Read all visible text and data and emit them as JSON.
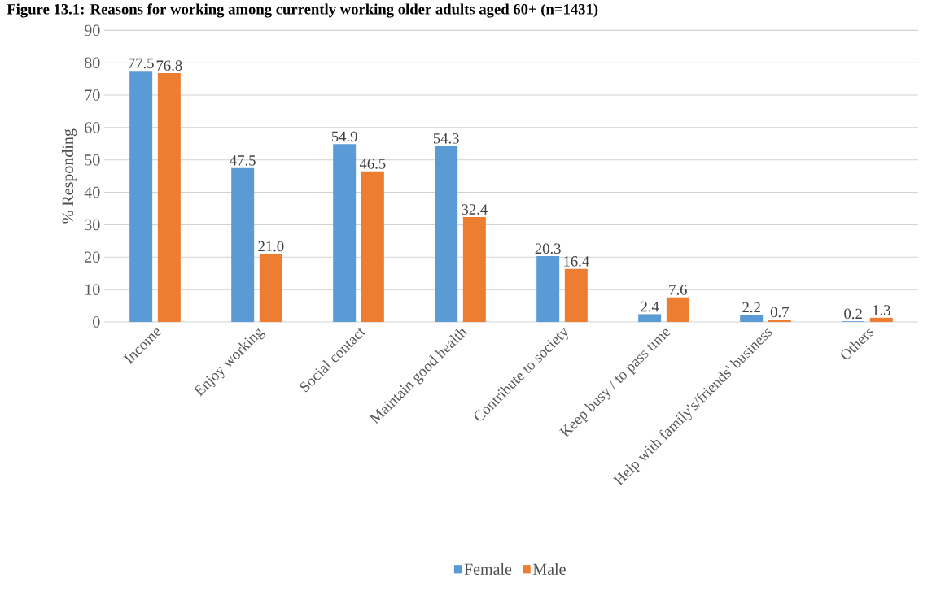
{
  "chart_data": {
    "type": "bar",
    "title": "Figure 13.1: Reasons for working among currently working older adults aged 60+ (n=1431)",
    "ylabel": "% Responding",
    "categories": [
      "Income",
      "Enjoy working",
      "Social contact",
      "Maintain good health",
      "Contribute to society",
      "Keep busy / to pass time",
      "Help with family's/friends' business",
      "Others"
    ],
    "series": [
      {
        "name": "Female",
        "color": "#5b9bd5",
        "values": [
          77.5,
          47.5,
          54.9,
          54.3,
          20.3,
          2.4,
          2.2,
          0.2
        ],
        "value_labels": [
          "77.5",
          "47.5",
          "54.9",
          "54.3",
          "20.3",
          "2.4",
          "2.2",
          "0.2"
        ]
      },
      {
        "name": "Male",
        "color": "#ed7d31",
        "values": [
          76.8,
          21.0,
          46.5,
          32.4,
          16.4,
          7.6,
          0.7,
          1.3
        ],
        "value_labels": [
          "76.8",
          "21.0",
          "46.5",
          "32.4",
          "16.4",
          "7.6",
          "0.7",
          "1.3"
        ]
      }
    ],
    "ylim": [
      0,
      90
    ],
    "yticks": [
      0,
      10,
      20,
      30,
      40,
      50,
      60,
      70,
      80,
      90
    ],
    "grid": "y",
    "legend": "bottom"
  }
}
